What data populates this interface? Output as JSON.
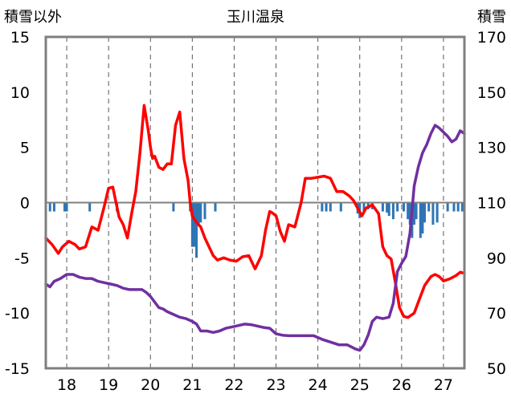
{
  "chart_data": {
    "type": "line",
    "title": "玉川温泉",
    "left_axis_label": "積雪以外",
    "right_axis_label": "積雪",
    "left_ylim": [
      -15,
      15
    ],
    "left_yticks": [
      15,
      10,
      5,
      0,
      -5,
      -10,
      -15
    ],
    "right_ylim": [
      50,
      170
    ],
    "right_yticks": [
      170,
      150,
      130,
      110,
      90,
      70,
      50
    ],
    "xlim": [
      17.5,
      27.5
    ],
    "xticks": [
      18,
      19,
      20,
      21,
      22,
      23,
      24,
      25,
      26,
      27
    ],
    "xgrid_dashed": true,
    "colors": {
      "red": "#ff0000",
      "purple": "#7030a0",
      "bars": "#2e75b6",
      "frame": "#7f7f7f",
      "grid": "#595959"
    },
    "series": [
      {
        "color": "red",
        "axis": "left",
        "x": [
          17.5,
          17.65,
          17.8,
          17.9,
          18.05,
          18.2,
          18.3,
          18.45,
          18.6,
          18.75,
          18.9,
          19.0,
          19.1,
          19.25,
          19.35,
          19.45,
          19.55,
          19.65,
          19.75,
          19.85,
          19.95,
          20.0,
          20.05,
          20.1,
          20.2,
          20.3,
          20.4,
          20.5,
          20.6,
          20.7,
          20.8,
          20.9,
          20.95,
          21.0,
          21.1,
          21.2,
          21.3,
          21.4,
          21.5,
          21.6,
          21.75,
          21.9,
          22.05,
          22.2,
          22.35,
          22.5,
          22.65,
          22.75,
          22.85,
          22.9,
          23.0,
          23.1,
          23.2,
          23.3,
          23.45,
          23.6,
          23.7,
          23.85,
          24.0,
          24.15,
          24.3,
          24.45,
          24.6,
          24.75,
          24.85,
          24.95,
          25.05,
          25.15,
          25.3,
          25.45,
          25.55,
          25.65,
          25.75,
          25.85,
          25.95,
          26.05,
          26.15,
          26.3,
          26.45,
          26.55,
          26.7,
          26.8,
          26.9,
          27.0,
          27.15,
          27.3,
          27.4,
          27.5
        ],
        "y": [
          -3.2,
          -3.8,
          -4.6,
          -4.0,
          -3.5,
          -3.8,
          -4.2,
          -4.0,
          -2.2,
          -2.5,
          -0.3,
          1.3,
          1.4,
          -1.3,
          -2.0,
          -3.2,
          -1.0,
          1.0,
          4.5,
          8.8,
          6.5,
          5.0,
          4.0,
          4.2,
          3.2,
          3.0,
          3.5,
          3.5,
          7.0,
          8.2,
          4.0,
          2.0,
          0.0,
          -1.2,
          -1.8,
          -2.2,
          -3.2,
          -4.0,
          -4.8,
          -5.2,
          -5.0,
          -5.2,
          -5.3,
          -4.9,
          -4.8,
          -6.0,
          -4.8,
          -2.5,
          -0.8,
          -0.9,
          -1.2,
          -2.6,
          -3.5,
          -2.0,
          -2.2,
          0.0,
          2.2,
          2.2,
          2.3,
          2.4,
          2.2,
          1.0,
          1.0,
          0.6,
          0.2,
          -0.5,
          -1.2,
          -0.5,
          -0.2,
          -1.0,
          -4.0,
          -4.8,
          -5.1,
          -7.2,
          -9.5,
          -10.3,
          -10.4,
          -10.0,
          -8.5,
          -7.5,
          -6.7,
          -6.5,
          -6.7,
          -7.1,
          -6.9,
          -6.6,
          -6.3,
          -6.4
        ]
      },
      {
        "color": "purple",
        "axis": "right",
        "x": [
          17.5,
          17.6,
          17.7,
          17.85,
          18.0,
          18.15,
          18.3,
          18.45,
          18.6,
          18.75,
          18.9,
          19.05,
          19.2,
          19.35,
          19.5,
          19.65,
          19.8,
          19.9,
          20.0,
          20.1,
          20.2,
          20.3,
          20.4,
          20.55,
          20.7,
          20.85,
          21.0,
          21.1,
          21.2,
          21.35,
          21.5,
          21.65,
          21.8,
          21.95,
          22.1,
          22.25,
          22.4,
          22.55,
          22.7,
          22.85,
          23.0,
          23.15,
          23.3,
          23.5,
          23.7,
          23.9,
          24.1,
          24.3,
          24.5,
          24.7,
          24.9,
          25.0,
          25.05,
          25.1,
          25.2,
          25.3,
          25.4,
          25.55,
          25.7,
          25.8,
          25.9,
          26.0,
          26.1,
          26.2,
          26.3,
          26.4,
          26.5,
          26.6,
          26.7,
          26.8,
          26.9,
          27.0,
          27.1,
          27.2,
          27.3,
          27.4,
          27.5
        ],
        "y": [
          80.5,
          79.5,
          81.5,
          82.5,
          84,
          84,
          83,
          82.5,
          82.5,
          81.5,
          81,
          80.5,
          80,
          79,
          78.5,
          78.5,
          78.5,
          77.5,
          76,
          74,
          72,
          71.5,
          70.5,
          69.5,
          68.5,
          68,
          67,
          66,
          63.5,
          63.5,
          63,
          63.5,
          64.5,
          65,
          65.5,
          66,
          65.8,
          65.3,
          64.8,
          64.5,
          62.5,
          62,
          61.8,
          61.8,
          61.8,
          61.8,
          60.5,
          59.5,
          58.5,
          58.5,
          57,
          56.5,
          57.5,
          58.5,
          62,
          67,
          68.5,
          68,
          68.5,
          73.5,
          85,
          88,
          90.5,
          99,
          116,
          123,
          128,
          131,
          135,
          138,
          137,
          135.5,
          134,
          132,
          133,
          136,
          135
        ]
      }
    ],
    "bars": {
      "color": "bars",
      "axis": "left",
      "x": [
        17.6,
        17.7,
        17.95,
        18.0,
        18.55,
        19.2,
        20.55,
        20.95,
        21.0,
        21.05,
        21.1,
        21.15,
        21.2,
        21.3,
        21.55,
        24.1,
        24.2,
        24.3,
        24.55,
        24.95,
        25.0,
        25.1,
        25.2,
        25.3,
        25.55,
        25.65,
        25.7,
        25.8,
        25.9,
        26.05,
        26.15,
        26.2,
        26.25,
        26.3,
        26.35,
        26.45,
        26.5,
        26.55,
        26.65,
        26.75,
        26.85,
        27.1,
        27.25,
        27.35,
        27.45
      ],
      "y": [
        -0.8,
        -0.8,
        -0.8,
        -0.8,
        -0.8,
        -0.8,
        -0.8,
        -0.8,
        -4.0,
        -4.0,
        -5.0,
        -2.0,
        -1.8,
        -1.5,
        -0.8,
        -0.8,
        -0.8,
        -0.8,
        -0.8,
        -1.0,
        -1.4,
        -0.8,
        -0.6,
        -0.6,
        -0.8,
        -0.9,
        -1.2,
        -1.5,
        -0.8,
        -0.8,
        -1.5,
        -2.0,
        -3.2,
        -2.0,
        -1.5,
        -3.2,
        -2.8,
        -1.8,
        -0.8,
        -2.0,
        -1.8,
        -0.8,
        -0.8,
        -0.8,
        -0.8
      ]
    }
  }
}
